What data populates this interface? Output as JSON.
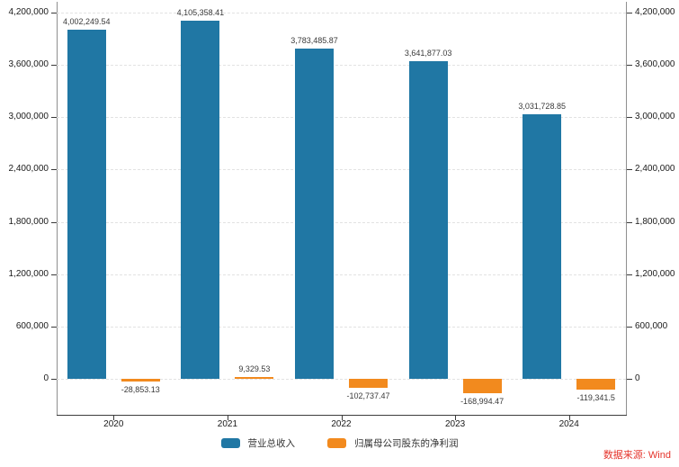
{
  "source_note": "数据来源: Wind",
  "chart_data": {
    "type": "bar",
    "title": "",
    "xlabel": "",
    "ylabel": "",
    "categories": [
      "2020",
      "2021",
      "2022",
      "2023",
      "2024"
    ],
    "series": [
      {
        "key": "revenue",
        "name": "营业总收入",
        "color": "#2077a4",
        "values": [
          4002249.54,
          4105358.41,
          3783485.87,
          3641877.03,
          3031728.85
        ],
        "labels": [
          "4,002,249.54",
          "4,105,358.41",
          "3,783,485.87",
          "3,641,877.03",
          "3,031,728.85"
        ]
      },
      {
        "key": "net-profit",
        "name": "归属母公司股东的净利润",
        "color": "#f28a1e",
        "values": [
          -28853.13,
          9329.53,
          -102737.47,
          -168994.47,
          -119341.5
        ],
        "labels": [
          "-28,853.13",
          "9,329.53",
          "-102,737.47",
          "-168,994.47",
          "-119,341.5"
        ]
      }
    ],
    "y_ticks": [
      {
        "value": 0,
        "label": "0"
      },
      {
        "value": 600000,
        "label": "600,000"
      },
      {
        "value": 1200000,
        "label": "1,200,000"
      },
      {
        "value": 1800000,
        "label": "1,800,000"
      },
      {
        "value": 2400000,
        "label": "2,400,000"
      },
      {
        "value": 3000000,
        "label": "3,000,000"
      },
      {
        "value": 3600000,
        "label": "3,600,000"
      },
      {
        "value": 4200000,
        "label": "4,200,000"
      }
    ],
    "ylim": [
      -420000,
      4300000
    ],
    "grid": "horizontal-dashed",
    "legend_position": "bottom",
    "dual_y_axis": true
  }
}
